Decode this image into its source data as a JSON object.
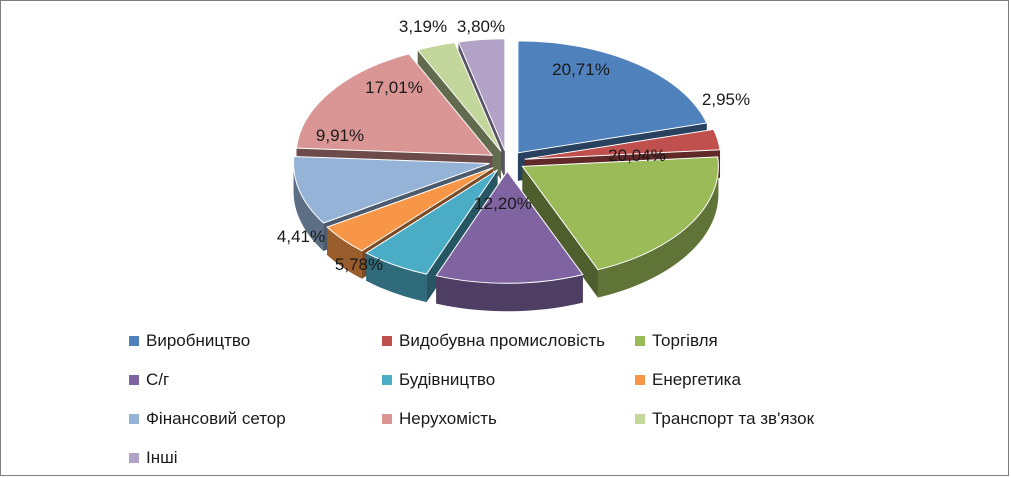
{
  "chart_data": {
    "type": "pie",
    "title": "",
    "legend_position": "bottom",
    "slices": [
      {
        "name": "Виробництво",
        "value": 20.71,
        "label": "20,71%",
        "color": "#4f81bd"
      },
      {
        "name": "Видобувна промисловість",
        "value": 2.95,
        "label": "2,95%",
        "color": "#c0504d"
      },
      {
        "name": "Торгівля",
        "value": 20.04,
        "label": "20,04%",
        "color": "#9bbb59"
      },
      {
        "name": "С/г",
        "value": 12.2,
        "label": "12,20%",
        "color": "#8064a2"
      },
      {
        "name": "Будівництво",
        "value": 5.78,
        "label": "5,78%",
        "color": "#4bacc6"
      },
      {
        "name": "Енергетика",
        "value": 4.41,
        "label": "4,41%",
        "color": "#f79646"
      },
      {
        "name": "Фінансовий сетор",
        "value": 9.91,
        "label": "9,91%",
        "color": "#95b3d7"
      },
      {
        "name": "Нерухомість",
        "value": 17.01,
        "label": "17,01%",
        "color": "#d99694"
      },
      {
        "name": "Транспорт та зв'язок",
        "value": 3.19,
        "label": "3,19%",
        "color": "#c3d69b"
      },
      {
        "name": "Інші",
        "value": 3.8,
        "label": "3,80%",
        "color": "#b2a2c7"
      }
    ]
  }
}
